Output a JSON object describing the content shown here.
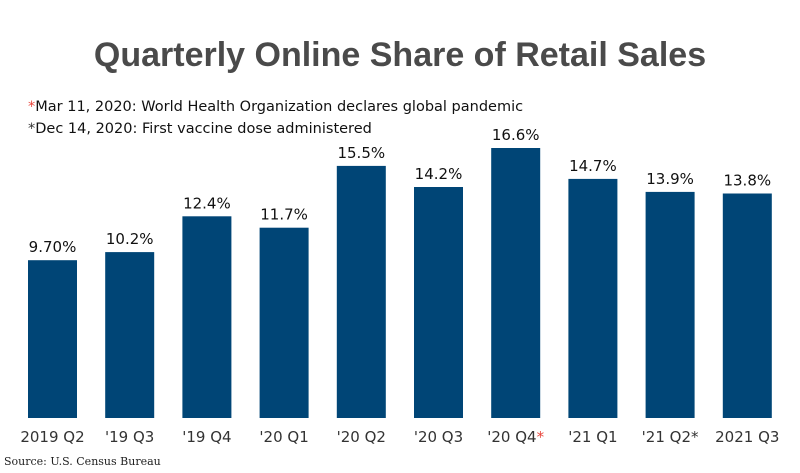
{
  "chart_data": {
    "type": "bar",
    "title": "Quarterly Online Share of Retail Sales",
    "categories": [
      "2019 Q2",
      "'19 Q3",
      "'19 Q4",
      "'20 Q1",
      "'20 Q2",
      "'20 Q3",
      "'20 Q4",
      "'21 Q1",
      "'21 Q2",
      "2021 Q3"
    ],
    "values": [
      9.7,
      10.2,
      12.4,
      11.7,
      15.5,
      14.2,
      16.6,
      14.7,
      13.9,
      13.8
    ],
    "value_labels": [
      "9.70%",
      "10.2%",
      "12.4%",
      "11.7%",
      "15.5%",
      "14.2%",
      "16.6%",
      "14.7%",
      "13.9%",
      "13.8%"
    ],
    "annotations": [
      {
        "marker": "*",
        "color": "#e8443a",
        "text": "Mar 11, 2020: World Health Organization declares global pandemic",
        "category": "'20 Q4"
      },
      {
        "marker": "*",
        "color": "#333333",
        "text": "Dec 14, 2020: First vaccine dose administered",
        "category": "'21 Q2"
      }
    ],
    "ylim": [
      0,
      16.6
    ],
    "grid": false,
    "legend": "none",
    "bar_color": "#004576",
    "source": "Source: U.S. Census Bureau"
  }
}
